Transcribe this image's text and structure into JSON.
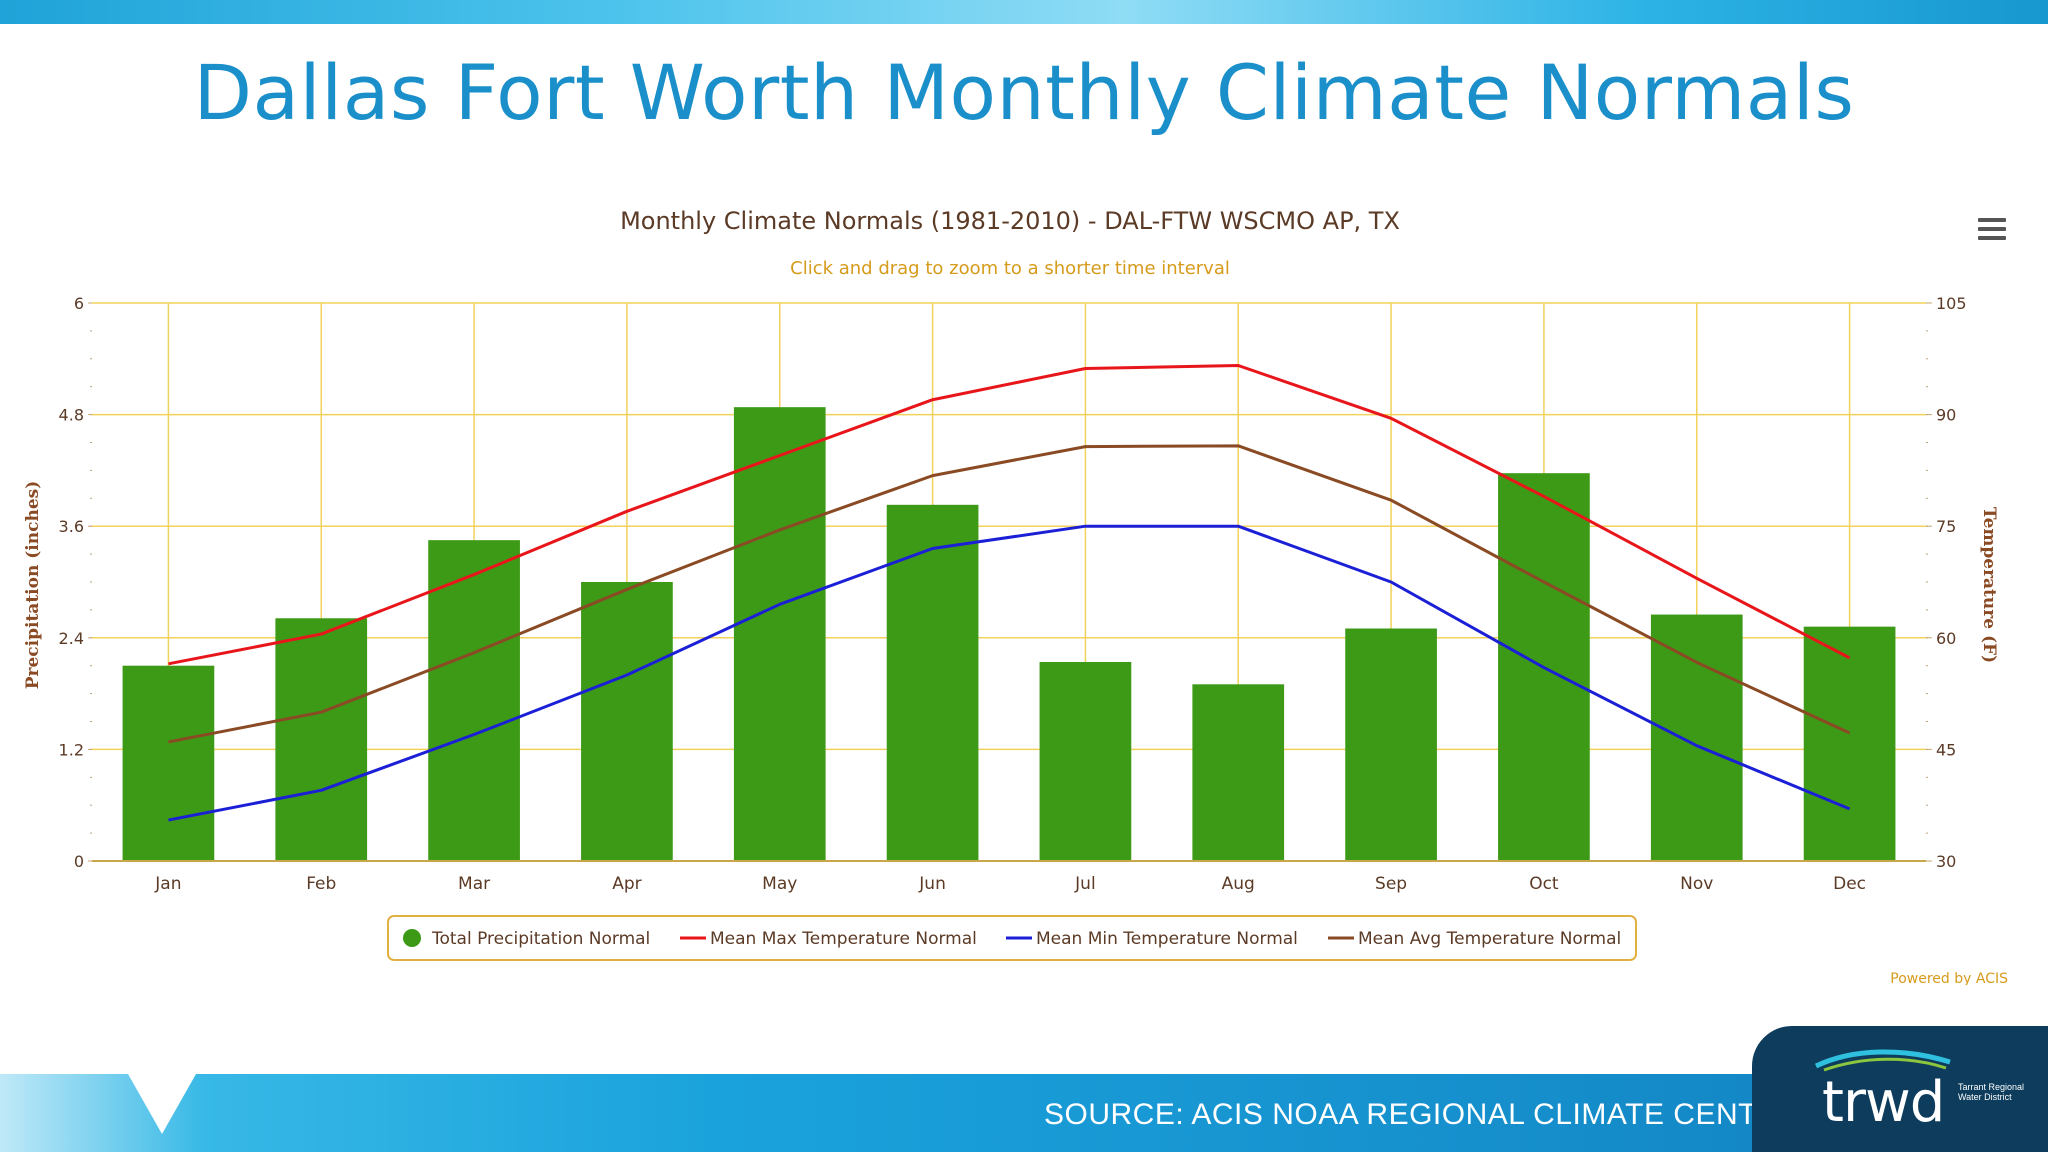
{
  "slide": {
    "title": "Dallas Fort Worth Monthly Climate Normals",
    "source": "SOURCE: ACIS NOAA REGIONAL CLIMATE CENTER",
    "logo": "trwd",
    "logo_sub": "Tarrant Regional Water District"
  },
  "colors": {
    "title": "#1a8fc9",
    "precip": "#3d9a17",
    "max": "#e8161a",
    "min": "#1b1fd6",
    "avg": "#8a4a24",
    "grid": "#f2d25a"
  },
  "chart_data": {
    "type": "bar",
    "title": "Monthly Climate Normals (1981-2010) - DAL-FTW WSCMO AP, TX",
    "subtitle": "Click and drag to zoom to a shorter time interval",
    "credit": "Powered by ACIS",
    "categories": [
      "Jan",
      "Feb",
      "Mar",
      "Apr",
      "May",
      "Jun",
      "Jul",
      "Aug",
      "Sep",
      "Oct",
      "Nov",
      "Dec"
    ],
    "ylabel": "Precipitation (inches)",
    "ylabel_right": "Temperature (F)",
    "ylim": [
      0,
      6
    ],
    "ylim_right": [
      30,
      105
    ],
    "yticks": [
      "0",
      "1.2",
      "2.4",
      "3.6",
      "4.8",
      "6"
    ],
    "yticks_right": [
      "30",
      "45",
      "60",
      "75",
      "90",
      "105"
    ],
    "grid": true,
    "legend_position": "bottom",
    "series": [
      {
        "name": "Total Precipitation Normal",
        "type": "bar",
        "axis": "left",
        "values": [
          2.1,
          2.61,
          3.45,
          3.0,
          4.88,
          3.83,
          2.14,
          1.9,
          2.5,
          4.17,
          2.65,
          2.52
        ]
      },
      {
        "name": "Mean Max Temperature Normal",
        "type": "line",
        "axis": "right",
        "values": [
          56.5,
          60.5,
          68.5,
          77.0,
          84.5,
          92.0,
          96.2,
          96.6,
          89.5,
          79.0,
          68.0,
          57.3
        ]
      },
      {
        "name": "Mean Min Temperature Normal",
        "type": "line",
        "axis": "right",
        "values": [
          35.5,
          39.5,
          47.0,
          55.0,
          64.5,
          72.0,
          75.0,
          75.0,
          67.5,
          56.0,
          45.5,
          37.0
        ]
      },
      {
        "name": "Mean Avg Temperature Normal",
        "type": "line",
        "axis": "right",
        "values": [
          46.0,
          50.0,
          58.0,
          66.5,
          74.5,
          81.8,
          85.7,
          85.8,
          78.5,
          67.5,
          56.7,
          47.2
        ]
      }
    ]
  }
}
